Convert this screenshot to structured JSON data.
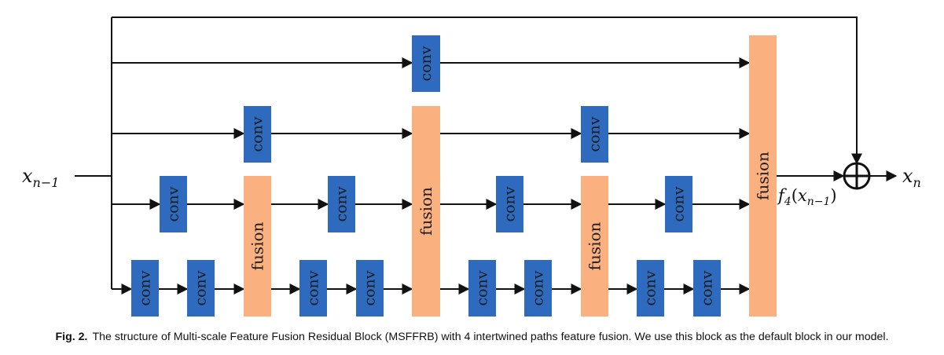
{
  "diagram": {
    "input_label": {
      "base": "x",
      "sub": "n−1"
    },
    "output_label": {
      "base": "x",
      "sub": "n"
    },
    "fusion_output_label": {
      "f": "f",
      "fsub": "4",
      "x": "x",
      "xsub": "n−1"
    },
    "conv_label": "conv",
    "fusion_label": "fusion",
    "sum_symbol": "plus-circle-icon",
    "colors": {
      "conv": "#2e6bbf",
      "fusion": "#fbb07f",
      "line": "#111111"
    }
  },
  "caption": {
    "fig": "Fig. 2.",
    "text": "The structure of Multi-scale Feature Fusion Residual Block (MSFFRB) with 4 intertwined paths feature fusion. We use this block as the default block in our model."
  }
}
